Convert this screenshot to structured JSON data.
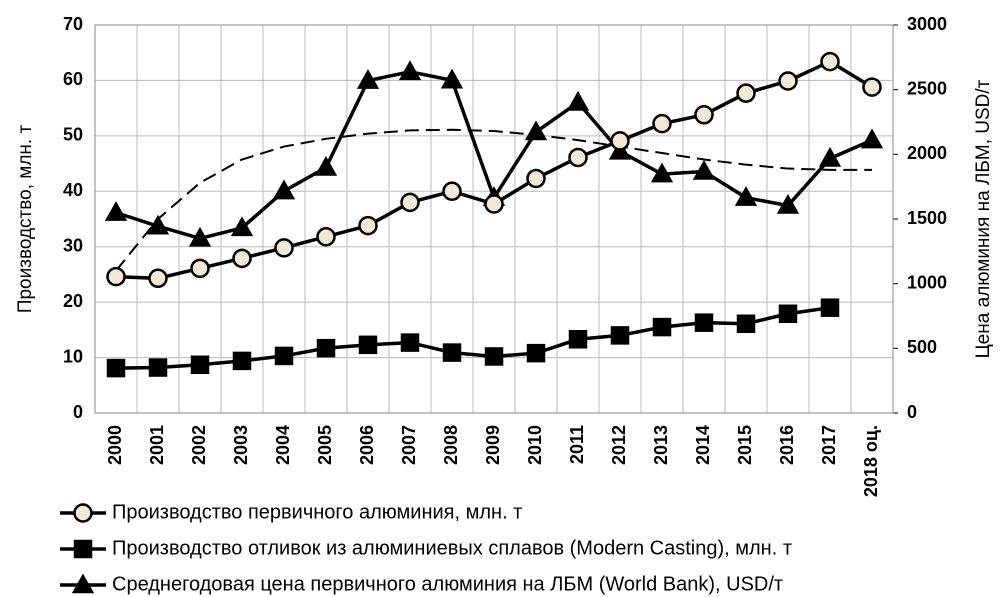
{
  "chart_data": {
    "type": "line",
    "categories": [
      "2000",
      "2001",
      "2002",
      "2003",
      "2004",
      "2005",
      "2006",
      "2007",
      "2008",
      "2009",
      "2010",
      "2011",
      "2012",
      "2013",
      "2014",
      "2015",
      "2016",
      "2017",
      "2018 оц."
    ],
    "y_label": "Производство, млн. т",
    "y2_label": "Цена алюминия на ЛБМ, USD/т",
    "ylim": [
      0,
      70
    ],
    "yticks": [
      0,
      10,
      20,
      30,
      40,
      50,
      60,
      70
    ],
    "y2lim": [
      0,
      3000
    ],
    "y2ticks": [
      0,
      500,
      1000,
      1500,
      2000,
      2500,
      3000
    ],
    "grid": true,
    "series": [
      {
        "name": "Производство первичного алюминия, млн. т",
        "color": "#000000",
        "fill": "#efe9d6",
        "marker": "circle",
        "values": [
          24.6,
          24.3,
          26.1,
          27.9,
          29.8,
          31.8,
          33.8,
          38,
          40,
          37.7,
          42.3,
          46.1,
          49.1,
          52.2,
          53.8,
          57.7,
          59.9,
          63.4,
          58.8
        ]
      },
      {
        "name": "Производство отливок из алюминиевых сплавов (Modern Casting), млн. т",
        "color": "#000000",
        "fill": "#000000",
        "marker": "square",
        "values": [
          8.1,
          8.2,
          8.7,
          9.4,
          10.3,
          11.7,
          12.3,
          12.7,
          10.9,
          10.2,
          10.8,
          13.3,
          14.0,
          15.5,
          16.3,
          16.1,
          17.9,
          19.0,
          null
        ]
      },
      {
        "name": "Среднегодовая цена первичного алюминия на ЛБМ (World Bank), USD/т",
        "color": "#000000",
        "fill": "#000000",
        "marker": "triangle",
        "axis": "y2",
        "values": [
          1549,
          1444,
          1350,
          1431,
          1716,
          1898,
          2570,
          2638,
          2573,
          1665,
          2173,
          2401,
          2023,
          1847,
          1867,
          1665,
          1604,
          1968,
          2110
        ]
      },
      {
        "color": "#000000",
        "dash": true,
        "axis": "y2",
        "values": [
          1100,
          1500,
          1780,
          1960,
          2060,
          2120,
          2160,
          2185,
          2190,
          2180,
          2150,
          2110,
          2060,
          2010,
          1960,
          1920,
          1890,
          1880,
          1880
        ]
      }
    ]
  }
}
